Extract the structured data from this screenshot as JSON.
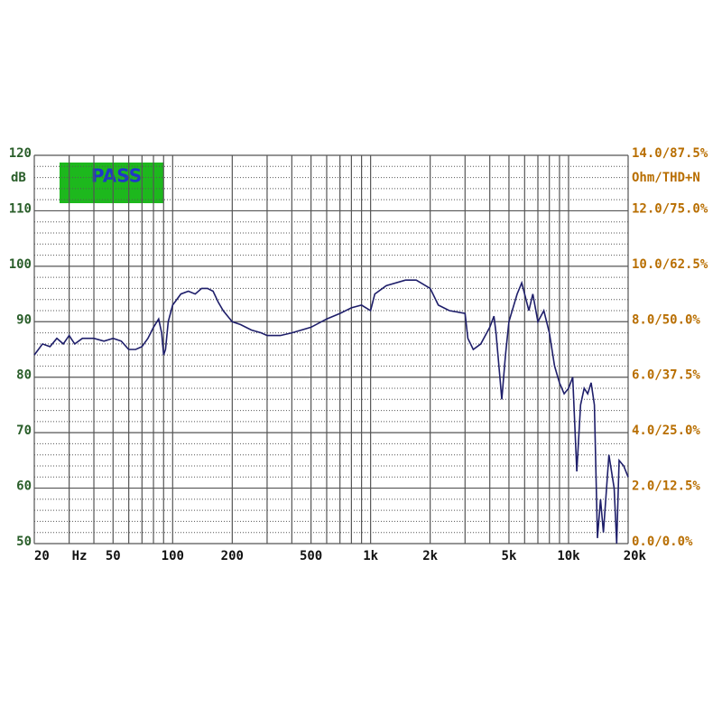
{
  "chart_data": {
    "type": "line",
    "status": "PASS",
    "y_label": "dB",
    "y2_label": "Ohm/THD+N",
    "x_label": "Hz",
    "xscale": "log",
    "xlim": [
      20,
      20000
    ],
    "ylim": [
      50,
      120
    ],
    "y2lim": [
      0,
      14
    ],
    "xticks": [
      20,
      50,
      100,
      200,
      500,
      {
        "value": 1000,
        "label": "1k"
      },
      {
        "value": 2000,
        "label": "2k"
      },
      {
        "value": 5000,
        "label": "5k"
      },
      {
        "value": 10000,
        "label": "10k"
      },
      {
        "value": 20000,
        "label": "20k"
      }
    ],
    "xgrid": [
      30,
      40,
      60,
      70,
      80,
      90,
      300,
      400,
      600,
      700,
      800,
      900,
      3000,
      4000,
      6000,
      7000,
      8000,
      9000
    ],
    "yticks": [
      50,
      60,
      70,
      80,
      90,
      100,
      110,
      120
    ],
    "yminor": [
      52,
      54,
      56,
      58,
      62,
      64,
      66,
      68,
      72,
      74,
      76,
      78,
      82,
      84,
      86,
      88,
      92,
      94,
      96,
      98,
      102,
      104,
      106,
      108,
      112,
      114,
      116,
      118
    ],
    "y2ticks": [
      {
        "value": 0,
        "label": "0.0/0.0%"
      },
      {
        "value": 2,
        "label": "2.0/12.5%"
      },
      {
        "value": 4,
        "label": "4.0/25.0%"
      },
      {
        "value": 6,
        "label": "6.0/37.5%"
      },
      {
        "value": 8,
        "label": "8.0/50.0%"
      },
      {
        "value": 10,
        "label": "10.0/62.5%"
      },
      {
        "value": 12,
        "label": "12.0/75.0%"
      },
      {
        "value": 14,
        "label": "14.0/87.5%"
      }
    ],
    "x": [
      20,
      22,
      24,
      26,
      28,
      30,
      32,
      35,
      40,
      45,
      50,
      55,
      60,
      65,
      70,
      75,
      80,
      85,
      88,
      90,
      92,
      95,
      100,
      110,
      120,
      130,
      140,
      150,
      160,
      170,
      180,
      200,
      220,
      250,
      280,
      300,
      350,
      400,
      500,
      600,
      700,
      800,
      900,
      1000,
      1050,
      1200,
      1500,
      1700,
      2000,
      2200,
      2500,
      3000,
      3100,
      3300,
      3600,
      4000,
      4200,
      4300,
      4500,
      4600,
      4800,
      5000,
      5500,
      5800,
      6000,
      6300,
      6600,
      7000,
      7500,
      8000,
      8500,
      9000,
      9500,
      10000,
      10500,
      11000,
      11500,
      12000,
      12500,
      13000,
      13500,
      14000,
      14500,
      15000,
      16000,
      17000,
      17500,
      18000,
      19000,
      20000
    ],
    "series": [
      {
        "color": "#1e1e6a",
        "values": [
          84,
          86,
          85.5,
          87,
          86,
          87.5,
          86,
          87,
          87,
          86.5,
          87,
          86.5,
          85,
          85,
          85.5,
          87,
          89,
          90.5,
          88,
          84,
          85,
          90,
          93,
          95,
          95.5,
          95,
          96,
          96,
          95.5,
          93.5,
          92,
          90,
          89.5,
          88.5,
          88,
          87.5,
          87.5,
          88,
          89,
          90.5,
          91.5,
          92.5,
          93,
          92,
          95,
          96.5,
          97.5,
          97.5,
          96,
          93,
          92,
          91.5,
          87,
          85,
          86,
          89,
          91,
          88,
          80,
          76,
          84,
          90,
          95,
          97,
          95,
          92,
          95,
          90,
          92,
          88,
          82,
          79,
          77,
          78,
          80,
          63,
          75,
          78,
          77,
          79,
          75,
          51,
          58,
          52,
          66,
          60,
          50,
          65,
          64,
          62
        ]
      }
    ]
  }
}
